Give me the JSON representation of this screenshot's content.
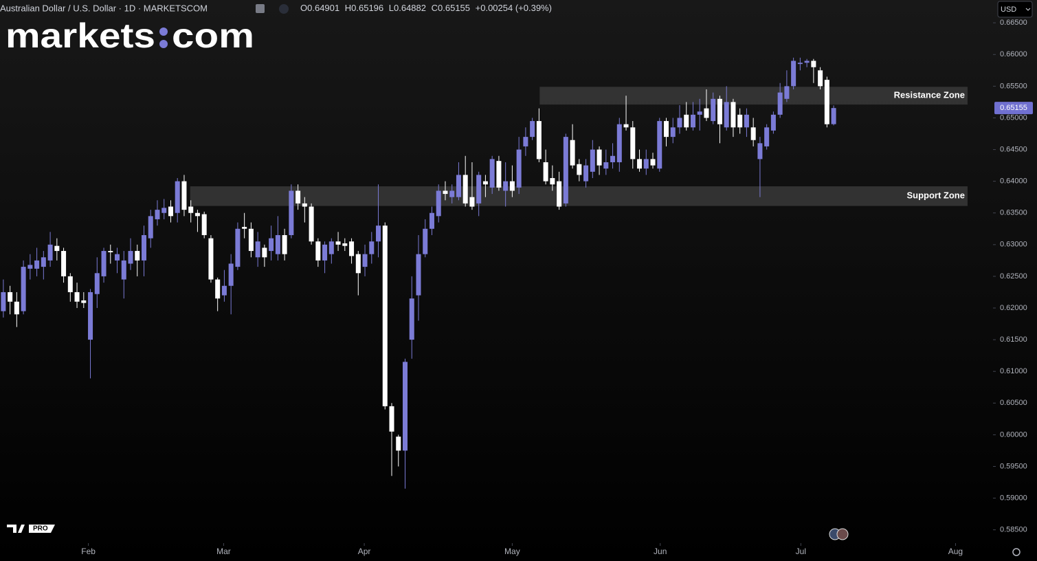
{
  "header": {
    "symbol": "Australian Dollar / U.S. Dollar · 1D · MARKETSCOM",
    "ohlc": [
      {
        "label": "O",
        "value": "0.64901"
      },
      {
        "label": "H",
        "value": "0.65196"
      },
      {
        "label": "L",
        "value": "0.64882"
      },
      {
        "label": "C",
        "value": "0.65155"
      }
    ],
    "change": "+0.00254 (+0.39%)",
    "currency": "USD"
  },
  "logo": {
    "left": "markets",
    "right": "com",
    "badge": "PRO"
  },
  "chart_data": {
    "type": "candlestick",
    "up_color": "#7b7bd6",
    "down_color": "#ffffff",
    "open": [
      0.6195,
      0.6225,
      0.621,
      0.6195,
      0.6262,
      0.6262,
      0.6265,
      0.6275,
      0.6298,
      0.629,
      0.625,
      0.6225,
      0.6212,
      0.615,
      0.6222,
      0.625,
      0.629,
      0.6275,
      0.6245,
      0.627,
      0.629,
      0.6275,
      0.631,
      0.634,
      0.635,
      0.636,
      0.635,
      0.64,
      0.636,
      0.635,
      0.6348,
      0.631,
      0.6245,
      0.622,
      0.6235,
      0.6265,
      0.6328,
      0.6325,
      0.628,
      0.6295,
      0.629,
      0.6285,
      0.6315,
      0.6315,
      0.6385,
      0.6365,
      0.636,
      0.6305,
      0.6275,
      0.6285,
      0.6305,
      0.6302,
      0.6305,
      0.6285,
      0.6265,
      0.6285,
      0.6305,
      0.633,
      0.6045,
      0.5997,
      0.5975,
      0.615,
      0.622,
      0.6285,
      0.6325,
      0.6345,
      0.6385,
      0.6375,
      0.6375,
      0.641,
      0.6375,
      0.6365,
      0.64,
      0.639,
      0.6432,
      0.6385,
      0.64,
      0.639,
      0.6455,
      0.647,
      0.6495,
      0.643,
      0.6405,
      0.64,
      0.6365,
      0.6465,
      0.6427,
      0.64,
      0.6415,
      0.645,
      0.642,
      0.643,
      0.643,
      0.649,
      0.6485,
      0.6435,
      0.642,
      0.6435,
      0.642,
      0.6495,
      0.647,
      0.6485,
      0.6505,
      0.6485,
      0.6505,
      0.6515,
      0.6495,
      0.653,
      0.6485,
      0.6525,
      0.6505,
      0.6485,
      0.6485,
      0.6435,
      0.6455,
      0.648,
      0.6505,
      0.653,
      0.655,
      0.6585,
      0.6587,
      0.659,
      0.6575,
      0.656,
      0.64901
    ],
    "high": [
      0.6245,
      0.6235,
      0.6225,
      0.6275,
      0.6285,
      0.6295,
      0.629,
      0.632,
      0.631,
      0.6295,
      0.6255,
      0.624,
      0.6225,
      0.623,
      0.628,
      0.6295,
      0.63,
      0.6295,
      0.629,
      0.631,
      0.63,
      0.633,
      0.6355,
      0.637,
      0.6372,
      0.637,
      0.6405,
      0.641,
      0.637,
      0.6355,
      0.6352,
      0.6315,
      0.6248,
      0.626,
      0.6285,
      0.6335,
      0.635,
      0.6335,
      0.632,
      0.63,
      0.633,
      0.6345,
      0.6325,
      0.6395,
      0.6395,
      0.6375,
      0.6365,
      0.631,
      0.6305,
      0.631,
      0.632,
      0.631,
      0.631,
      0.629,
      0.63,
      0.632,
      0.6395,
      0.6335,
      0.605,
      0.6,
      0.612,
      0.625,
      0.6315,
      0.634,
      0.636,
      0.6395,
      0.64,
      0.6395,
      0.643,
      0.644,
      0.643,
      0.6415,
      0.641,
      0.644,
      0.644,
      0.643,
      0.6425,
      0.647,
      0.6485,
      0.65,
      0.6515,
      0.645,
      0.6425,
      0.6415,
      0.6475,
      0.649,
      0.6435,
      0.6435,
      0.6465,
      0.6455,
      0.645,
      0.646,
      0.65,
      0.6535,
      0.6495,
      0.645,
      0.645,
      0.6445,
      0.65,
      0.65,
      0.65,
      0.652,
      0.6525,
      0.6525,
      0.653,
      0.6545,
      0.654,
      0.6535,
      0.655,
      0.653,
      0.6515,
      0.6515,
      0.65,
      0.647,
      0.649,
      0.651,
      0.6555,
      0.6575,
      0.6595,
      0.6595,
      0.6593,
      0.6593,
      0.658,
      0.6565,
      0.65196
    ],
    "low": [
      0.6185,
      0.619,
      0.617,
      0.619,
      0.6245,
      0.625,
      0.6245,
      0.6265,
      0.6275,
      0.624,
      0.621,
      0.62,
      0.62,
      0.6089,
      0.62,
      0.624,
      0.627,
      0.6255,
      0.6215,
      0.626,
      0.625,
      0.625,
      0.6295,
      0.633,
      0.634,
      0.6335,
      0.6335,
      0.6345,
      0.6335,
      0.632,
      0.631,
      0.624,
      0.6195,
      0.621,
      0.619,
      0.626,
      0.631,
      0.628,
      0.6265,
      0.6265,
      0.6275,
      0.6275,
      0.6275,
      0.631,
      0.6355,
      0.6335,
      0.63,
      0.6265,
      0.6255,
      0.627,
      0.629,
      0.629,
      0.627,
      0.622,
      0.625,
      0.627,
      0.628,
      0.604,
      0.5935,
      0.595,
      0.5915,
      0.612,
      0.618,
      0.628,
      0.6315,
      0.6335,
      0.637,
      0.6365,
      0.637,
      0.636,
      0.6355,
      0.6345,
      0.6375,
      0.638,
      0.6385,
      0.636,
      0.6375,
      0.638,
      0.644,
      0.6465,
      0.643,
      0.6395,
      0.6385,
      0.6355,
      0.636,
      0.642,
      0.64,
      0.639,
      0.6405,
      0.641,
      0.641,
      0.642,
      0.6415,
      0.648,
      0.642,
      0.6415,
      0.641,
      0.642,
      0.6415,
      0.6455,
      0.646,
      0.6475,
      0.648,
      0.648,
      0.648,
      0.6495,
      0.649,
      0.646,
      0.648,
      0.647,
      0.6475,
      0.647,
      0.6455,
      0.6375,
      0.645,
      0.6475,
      0.65,
      0.6525,
      0.6545,
      0.6575,
      0.658,
      0.6555,
      0.6545,
      0.6485,
      0.64882
    ],
    "close": [
      0.6225,
      0.621,
      0.619,
      0.6265,
      0.6268,
      0.6275,
      0.628,
      0.63,
      0.629,
      0.625,
      0.6225,
      0.621,
      0.6208,
      0.6225,
      0.6255,
      0.629,
      0.6288,
      0.6285,
      0.6275,
      0.629,
      0.6275,
      0.6315,
      0.6345,
      0.6355,
      0.6358,
      0.6345,
      0.64,
      0.6355,
      0.635,
      0.6345,
      0.6315,
      0.6245,
      0.6215,
      0.6235,
      0.627,
      0.6325,
      0.6325,
      0.629,
      0.6305,
      0.628,
      0.631,
      0.6315,
      0.6285,
      0.6385,
      0.6365,
      0.636,
      0.6305,
      0.6275,
      0.63,
      0.6305,
      0.63,
      0.6298,
      0.6282,
      0.6255,
      0.6285,
      0.6305,
      0.633,
      0.6045,
      0.6005,
      0.5975,
      0.6115,
      0.6215,
      0.6285,
      0.6325,
      0.635,
      0.6385,
      0.638,
      0.6385,
      0.641,
      0.6365,
      0.636,
      0.641,
      0.6395,
      0.6435,
      0.639,
      0.64,
      0.6385,
      0.645,
      0.647,
      0.6495,
      0.6435,
      0.64,
      0.6395,
      0.636,
      0.647,
      0.6425,
      0.641,
      0.6425,
      0.645,
      0.6425,
      0.643,
      0.644,
      0.649,
      0.6485,
      0.6435,
      0.642,
      0.6435,
      0.6425,
      0.6495,
      0.647,
      0.6485,
      0.65,
      0.6485,
      0.6505,
      0.651,
      0.65,
      0.653,
      0.649,
      0.6525,
      0.6485,
      0.6485,
      0.6505,
      0.6465,
      0.646,
      0.6485,
      0.6505,
      0.654,
      0.655,
      0.659,
      0.6587,
      0.659,
      0.658,
      0.655,
      0.649,
      0.65155
    ],
    "last_price": 0.65155,
    "xlim": [
      -0.5,
      147.8
    ],
    "xticks": [
      {
        "value": 12.7,
        "label": "Feb"
      },
      {
        "value": 32.9,
        "label": "Mar"
      },
      {
        "value": 53.9,
        "label": "Apr"
      },
      {
        "value": 76.0,
        "label": "May"
      },
      {
        "value": 98.1,
        "label": "Jun"
      },
      {
        "value": 119.1,
        "label": "Jul"
      },
      {
        "value": 142.2,
        "label": "Aug"
      }
    ],
    "ylim": [
      0.5829,
      0.6686
    ],
    "yticks": [
      {
        "value": 0.665,
        "label": "0.66500"
      },
      {
        "value": 0.66,
        "label": "0.66000"
      },
      {
        "value": 0.655,
        "label": "0.65500"
      },
      {
        "value": 0.65,
        "label": "0.65000"
      },
      {
        "value": 0.645,
        "label": "0.64500"
      },
      {
        "value": 0.64,
        "label": "0.64000"
      },
      {
        "value": 0.635,
        "label": "0.63500"
      },
      {
        "value": 0.63,
        "label": "0.63000"
      },
      {
        "value": 0.625,
        "label": "0.62500"
      },
      {
        "value": 0.62,
        "label": "0.62000"
      },
      {
        "value": 0.615,
        "label": "0.61500"
      },
      {
        "value": 0.61,
        "label": "0.61000"
      },
      {
        "value": 0.605,
        "label": "0.60500"
      },
      {
        "value": 0.6,
        "label": "0.60000"
      },
      {
        "value": 0.595,
        "label": "0.59500"
      },
      {
        "value": 0.59,
        "label": "0.59000"
      },
      {
        "value": 0.585,
        "label": "0.58500"
      }
    ],
    "zones": [
      {
        "label": "Resistance Zone",
        "from": 0.6521,
        "to": 0.6549,
        "start": 80.1,
        "end": 144.0
      },
      {
        "label": "Support Zone",
        "from": 0.6361,
        "to": 0.6392,
        "start": 27.9,
        "end": 144.0
      }
    ]
  }
}
